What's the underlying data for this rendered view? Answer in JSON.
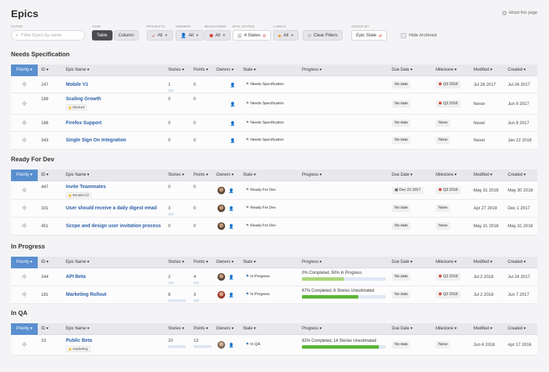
{
  "title": "Epics",
  "about_label": "About this page",
  "filters": {
    "search_label": "FILTER",
    "search_placeholder": "Filter Epics by name",
    "view_label": "VIEW",
    "view_table": "Table",
    "view_column": "Column",
    "projects_label": "PROJECTS",
    "projects_value": "All",
    "owners_label": "OWNERS",
    "owners_value": "All",
    "milestones_label": "MILESTONES",
    "milestones_value": "All",
    "epic_states_label": "EPIC STATES",
    "epic_states_value": "4 States",
    "labels_label": "LABELS",
    "labels_value": "All",
    "clear_filters": "Clear Filters",
    "group_by_label": "GROUP BY",
    "group_by_value": "Epic State",
    "hide_archived": "Hide Archived"
  },
  "columns": {
    "priority": "Priority",
    "id": "ID",
    "epic_name": "Epic Name",
    "stories": "Stories",
    "points": "Points",
    "owners": "Owners",
    "state": "State",
    "progress": "Progress",
    "due_date": "Due Date",
    "milestone": "Milestone",
    "modified": "Modified",
    "created": "Created"
  },
  "sections": [
    {
      "title": "Needs Specification",
      "rows": [
        {
          "id": "247",
          "name": "Mobile V1",
          "stories": "1",
          "points": "0",
          "state": "Needs Specification",
          "due": "No date",
          "milestone": "Q3 2018",
          "modified": "Jul 28 2017",
          "created": "Jul 26 2017"
        },
        {
          "id": "189",
          "name": "Scaling Growth",
          "tag": "blocked",
          "stories": "0",
          "points": "0",
          "state": "Needs Specification",
          "due": "No date",
          "milestone": "Q3 2018",
          "modified": "Never",
          "created": "Jun 9 2017"
        },
        {
          "id": "188",
          "name": "Firefox Support",
          "stories": "0",
          "points": "0",
          "state": "Needs Specification",
          "due": "No date",
          "milestone": "None",
          "modified": "Never",
          "created": "Jun 9 2017"
        },
        {
          "id": "343",
          "name": "Single Sign On Integration",
          "stories": "0",
          "points": "0",
          "state": "Needs Specification",
          "due": "No date",
          "milestone": "None",
          "modified": "Never",
          "created": "Jan 22 2018"
        }
      ]
    },
    {
      "title": "Ready For Dev",
      "rows": [
        {
          "id": "447",
          "name": "Invite Teammates",
          "tag": "iteration13",
          "stories": "0",
          "points": "0",
          "state": "Ready For Dev",
          "due": "Dec 22 2017",
          "milestone": "Q3 2018",
          "modified": "May 31 2018",
          "created": "May 30 2018"
        },
        {
          "id": "331",
          "name": "User should receive a daily digest email",
          "stories": "3",
          "points": "0",
          "state": "Ready For Dev",
          "due": "No date",
          "milestone": "None",
          "modified": "Apr 27 2018",
          "created": "Dec 1 2017"
        },
        {
          "id": "451",
          "name": "Scope and design user invitation process",
          "stories": "0",
          "points": "0",
          "state": "Ready For Dev",
          "due": "No date",
          "milestone": "None",
          "modified": "May 31 2018",
          "created": "May 31 2018"
        }
      ]
    },
    {
      "title": "In Progress",
      "rows": [
        {
          "id": "244",
          "name": "API Beta",
          "stories": "2",
          "points": "4",
          "state": "In Progress",
          "progress": "0% Completed, 50% In Progress",
          "due": "No date",
          "milestone": "Q2 2018",
          "modified": "Jul 2 2018",
          "created": "Jul 24 2017"
        },
        {
          "id": "181",
          "name": "Marketing Rollout",
          "stories": "8",
          "points": "3",
          "state": "In Progress",
          "progress": "67% Completed, 6 Stories Unestimated",
          "due": "No date",
          "milestone": "Q2 2018",
          "modified": "Jul 2 2018",
          "created": "Jun 7 2017"
        }
      ]
    },
    {
      "title": "In QA",
      "rows": [
        {
          "id": "33",
          "name": "Public Beta",
          "tag": "marketing",
          "stories": "20",
          "points": "13",
          "state": "In QA",
          "progress": "92% Completed, 14 Stories Unestimated",
          "due": "No date",
          "milestone": "None",
          "modified": "Jun 6 2018",
          "created": "Apr 17 2016"
        }
      ]
    }
  ],
  "progress_levels": {
    "api_beta": {
      "completed": 0,
      "in_progress": 0.5
    },
    "marketing_rollout": {
      "completed": 0.67
    },
    "public_beta": {
      "completed": 0.92
    }
  },
  "colors": {
    "priority_header": "#5a8fcf",
    "link": "#2a5ea6",
    "progress_done": "#5bb536",
    "progress_in_progress": "#a9d67c",
    "progress_track": "#dde8f3"
  }
}
